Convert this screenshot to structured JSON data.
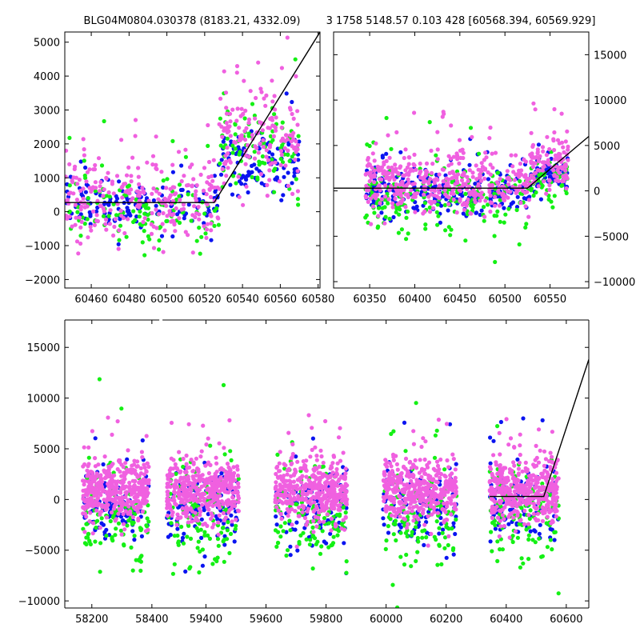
{
  "title_left": "BLG04M0804.030378 (8183.21, 4332.09)",
  "title_right": "3 1758 5148.57 0.103 428 [60568.394, 60569.929]",
  "colors": {
    "blue": "#0a14f0",
    "green": "#14f014",
    "magenta": "#f060e0",
    "fit": "#000000"
  },
  "chart_data": [
    {
      "id": "top-left",
      "type": "scatter",
      "title": "",
      "xlabel": "",
      "ylabel": "",
      "xlim": [
        60446,
        60581
      ],
      "ylim": [
        -2250,
        5300
      ],
      "xticks": [
        60460,
        60480,
        60500,
        60520,
        60540,
        60560,
        60580
      ],
      "yticks": [
        -2000,
        -1000,
        0,
        1000,
        2000,
        3000,
        4000,
        5000
      ],
      "ytick_side": "left",
      "grid": false,
      "series": [
        {
          "color": "blue",
          "clusters": [
            {
              "x": [
                60446,
                60528
              ],
              "y_center": 150,
              "y_spread": 600,
              "n": 150,
              "seed": 11
            },
            {
              "x": [
                60528,
                60570
              ],
              "y_center": 1500,
              "y_spread": 900,
              "n": 110,
              "seed": 12
            }
          ]
        },
        {
          "color": "green",
          "clusters": [
            {
              "x": [
                60446,
                60528
              ],
              "y_center": 0,
              "y_spread": 1000,
              "n": 120,
              "seed": 13
            },
            {
              "x": [
                60528,
                60570
              ],
              "y_center": 1900,
              "y_spread": 1100,
              "n": 90,
              "seed": 14
            }
          ]
        },
        {
          "color": "magenta",
          "clusters": [
            {
              "x": [
                60446,
                60528
              ],
              "y_center": 400,
              "y_spread": 1100,
              "n": 260,
              "seed": 15
            },
            {
              "x": [
                60528,
                60570
              ],
              "y_center": 2300,
              "y_spread": 1300,
              "n": 160,
              "seed": 16
            }
          ]
        }
      ],
      "fit_line": [
        [
          60446,
          270
        ],
        [
          60525,
          270
        ],
        [
          60581,
          5300
        ]
      ]
    },
    {
      "id": "top-right",
      "type": "scatter",
      "title": "",
      "xlabel": "",
      "ylabel": "",
      "xlim": [
        60310,
        60593
      ],
      "ylim": [
        -10700,
        17500
      ],
      "xticks": [
        60350,
        60400,
        60450,
        60500,
        60550
      ],
      "yticks": [
        -10000,
        -5000,
        0,
        5000,
        10000,
        15000
      ],
      "ytick_side": "right",
      "grid": false,
      "series": [
        {
          "color": "blue",
          "clusters": [
            {
              "x": [
                60345,
                60528
              ],
              "y_center": 0,
              "y_spread": 2200,
              "n": 260,
              "seed": 21
            },
            {
              "x": [
                60528,
                60570
              ],
              "y_center": 1800,
              "y_spread": 1500,
              "n": 80,
              "seed": 22
            }
          ]
        },
        {
          "color": "green",
          "clusters": [
            {
              "x": [
                60345,
                60528
              ],
              "y_center": -900,
              "y_spread": 3600,
              "n": 200,
              "seed": 23
            },
            {
              "x": [
                60528,
                60570
              ],
              "y_center": 1200,
              "y_spread": 2500,
              "n": 50,
              "seed": 24
            }
          ]
        },
        {
          "color": "magenta",
          "clusters": [
            {
              "x": [
                60345,
                60528
              ],
              "y_center": 900,
              "y_spread": 3000,
              "n": 420,
              "seed": 25
            },
            {
              "x": [
                60528,
                60570
              ],
              "y_center": 2800,
              "y_spread": 2800,
              "n": 110,
              "seed": 26
            }
          ]
        }
      ],
      "fit_line": [
        [
          60310,
          300
        ],
        [
          60525,
          300
        ],
        [
          60593,
          6000
        ]
      ]
    },
    {
      "id": "bottom",
      "type": "scatter",
      "title": "",
      "xlabel": "",
      "ylabel": "",
      "xlim": [
        58110,
        60675
      ],
      "ylim": [
        -10700,
        17700
      ],
      "xticks": [
        58200,
        58400,
        59400,
        59600,
        59800,
        60000,
        60200,
        60400,
        60600
      ],
      "yticks": [
        -10000,
        -5000,
        0,
        5000,
        10000,
        15000
      ],
      "ytick_side": "left",
      "grid": false,
      "x_break": {
        "from": 58430,
        "to": 59250,
        "display_fraction": 0.0
      },
      "season_ranges": [
        [
          58170,
          58390
        ],
        [
          59270,
          59510
        ],
        [
          59630,
          59870
        ],
        [
          59990,
          60235
        ],
        [
          60345,
          60575
        ]
      ],
      "series": [
        {
          "color": "blue",
          "per_season": {
            "y_center": -800,
            "y_spread": 3200,
            "n": 110
          },
          "seed": 31
        },
        {
          "color": "green",
          "per_season": {
            "y_center": -1800,
            "y_spread": 4200,
            "n": 120
          },
          "seed": 32
        },
        {
          "color": "magenta",
          "per_season": {
            "y_center": 900,
            "y_spread": 2600,
            "n": 420
          },
          "seed": 33
        }
      ],
      "fit_line": [
        [
          60345,
          300
        ],
        [
          60525,
          300
        ],
        [
          60675,
          13800
        ]
      ]
    }
  ]
}
